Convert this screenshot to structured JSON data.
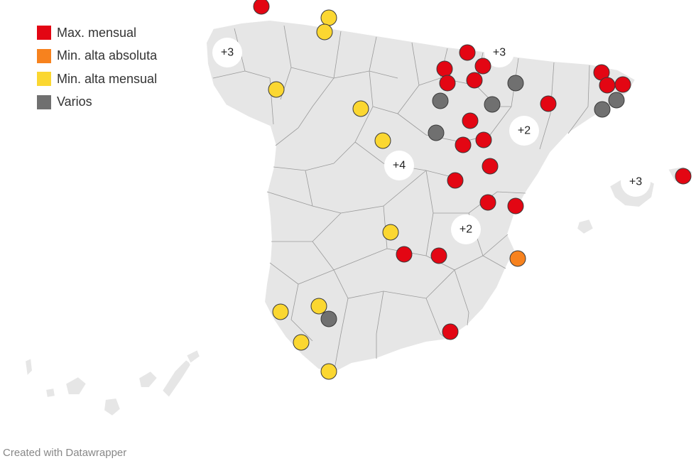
{
  "colors": {
    "max_mensual": "#e30613",
    "min_alta_absoluta": "#f7821e",
    "min_alta_mensual": "#fbd731",
    "varios": "#707070",
    "land": "#e6e6e6"
  },
  "legend": {
    "items": [
      {
        "label": "Max. mensual",
        "color": "#e30613"
      },
      {
        "label": "Min. alta absoluta",
        "color": "#f7821e"
      },
      {
        "label": "Min. alta mensual",
        "color": "#fbd731"
      },
      {
        "label": "Varios",
        "color": "#707070"
      }
    ]
  },
  "clusters": [
    {
      "label": "+3"
    },
    {
      "label": "+3"
    },
    {
      "label": "+2"
    },
    {
      "label": "+4"
    },
    {
      "label": "+3"
    },
    {
      "label": "+2"
    }
  ],
  "markers": [
    {
      "category": "max_mensual"
    },
    {
      "category": "max_mensual"
    },
    {
      "category": "max_mensual"
    },
    {
      "category": "max_mensual"
    },
    {
      "category": "max_mensual"
    },
    {
      "category": "max_mensual"
    },
    {
      "category": "max_mensual"
    },
    {
      "category": "max_mensual"
    },
    {
      "category": "max_mensual"
    },
    {
      "category": "max_mensual"
    },
    {
      "category": "max_mensual"
    },
    {
      "category": "max_mensual"
    },
    {
      "category": "max_mensual"
    },
    {
      "category": "max_mensual"
    },
    {
      "category": "max_mensual"
    },
    {
      "category": "max_mensual"
    },
    {
      "category": "max_mensual"
    },
    {
      "category": "max_mensual"
    },
    {
      "category": "max_mensual"
    },
    {
      "category": "max_mensual"
    },
    {
      "category": "max_mensual"
    },
    {
      "category": "min_alta_absoluta"
    },
    {
      "category": "min_alta_mensual"
    },
    {
      "category": "min_alta_mensual"
    },
    {
      "category": "min_alta_mensual"
    },
    {
      "category": "min_alta_mensual"
    },
    {
      "category": "min_alta_mensual"
    },
    {
      "category": "min_alta_mensual"
    },
    {
      "category": "min_alta_mensual"
    },
    {
      "category": "min_alta_mensual"
    },
    {
      "category": "min_alta_mensual"
    },
    {
      "category": "min_alta_mensual"
    },
    {
      "category": "varios"
    },
    {
      "category": "varios"
    },
    {
      "category": "varios"
    },
    {
      "category": "varios"
    },
    {
      "category": "varios"
    },
    {
      "category": "varios"
    },
    {
      "category": "varios"
    }
  ],
  "credit": "Created with Datawrapper"
}
